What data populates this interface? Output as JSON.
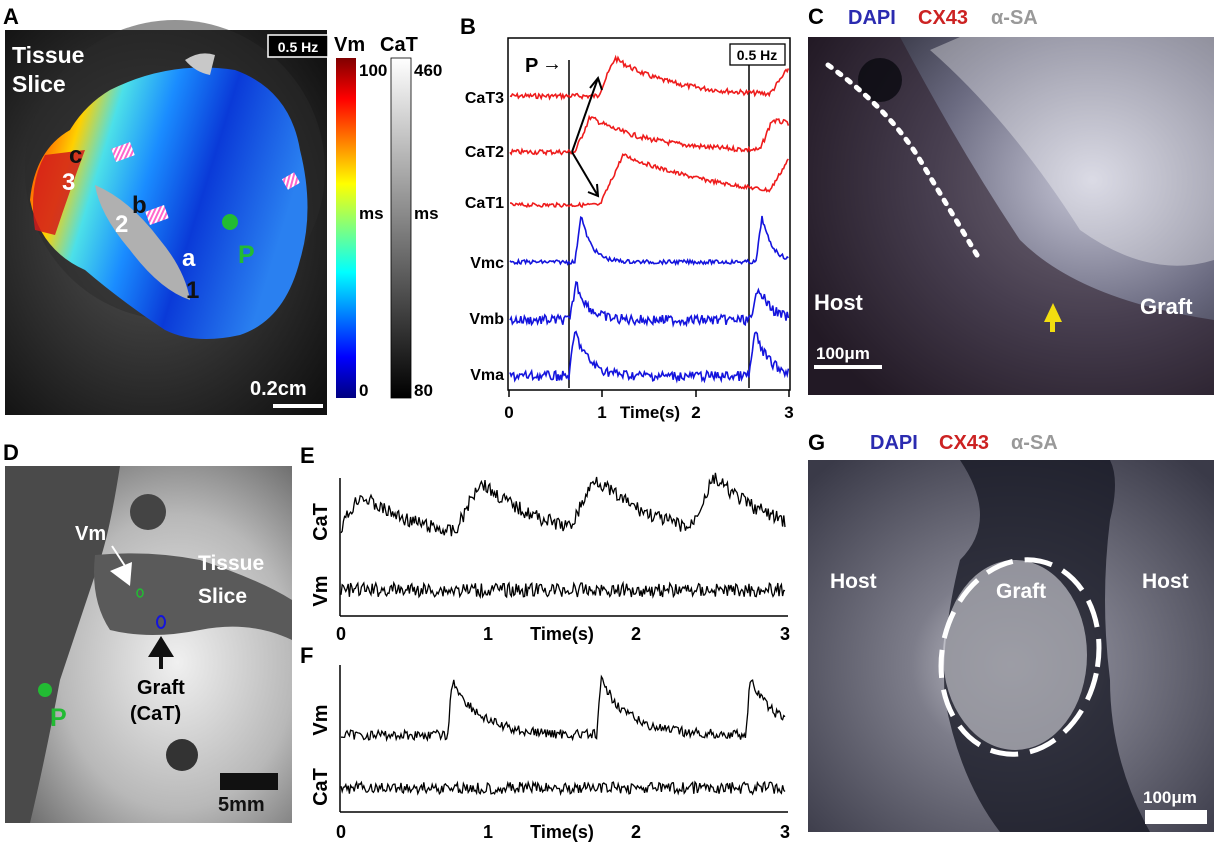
{
  "panels": {
    "A": {
      "letter": "A",
      "tissue_label_1": "Tissue",
      "tissue_label_2": "Slice",
      "freq": "0.5 Hz",
      "points": [
        "a",
        "b",
        "c"
      ],
      "numbers": [
        "1",
        "2",
        "3"
      ],
      "pacing": "P",
      "scale_bar": "0.2cm",
      "vm_bar": {
        "title": "Vm",
        "max": "100",
        "min": "0",
        "unit": "ms"
      },
      "cat_bar": {
        "title": "CaT",
        "max": "460",
        "min": "80",
        "unit": "ms"
      }
    },
    "B": {
      "letter": "B",
      "pacing": "P",
      "arrow": "→",
      "freq": "0.5 Hz",
      "traces": [
        "CaT3",
        "CaT2",
        "CaT1",
        "Vmc",
        "Vmb",
        "Vma"
      ],
      "xlabel": "Time(s)",
      "xticks": [
        "0",
        "1",
        "2",
        "3"
      ]
    },
    "C": {
      "letter": "C",
      "stain_1": "DAPI",
      "stain_2": "CX43",
      "stain_3": "α-SA",
      "host": "Host",
      "graft": "Graft",
      "scale_bar": "100μm"
    },
    "D": {
      "letter": "D",
      "vm": "Vm",
      "tissue_1": "Tissue",
      "tissue_2": "Slice",
      "graft_1": "Graft",
      "graft_2": "(CaT)",
      "pacing": "P",
      "scale_bar": "5mm"
    },
    "E": {
      "letter": "E",
      "top_trace": "CaT",
      "bottom_trace": "Vm",
      "xlabel": "Time(s)",
      "xticks": [
        "0",
        "1",
        "2",
        "3"
      ]
    },
    "F": {
      "letter": "F",
      "top_trace": "Vm",
      "bottom_trace": "CaT",
      "xlabel": "Time(s)",
      "xticks": [
        "0",
        "1",
        "2",
        "3"
      ]
    },
    "G": {
      "letter": "G",
      "stain_1": "DAPI",
      "stain_2": "CX43",
      "stain_3": "α-SA",
      "host_left": "Host",
      "host_right": "Host",
      "graft": "Graft",
      "scale_bar": "100μm"
    }
  },
  "colors": {
    "cat_trace": "#ee1c1c",
    "vm_trace": "#1414dd",
    "black_trace": "#000000",
    "pacing_green": "#22bb33",
    "dapi": "#2b2bb0",
    "cx43": "#cc2222",
    "asa": "#999999",
    "yellow_arrow": "#f2de10"
  }
}
